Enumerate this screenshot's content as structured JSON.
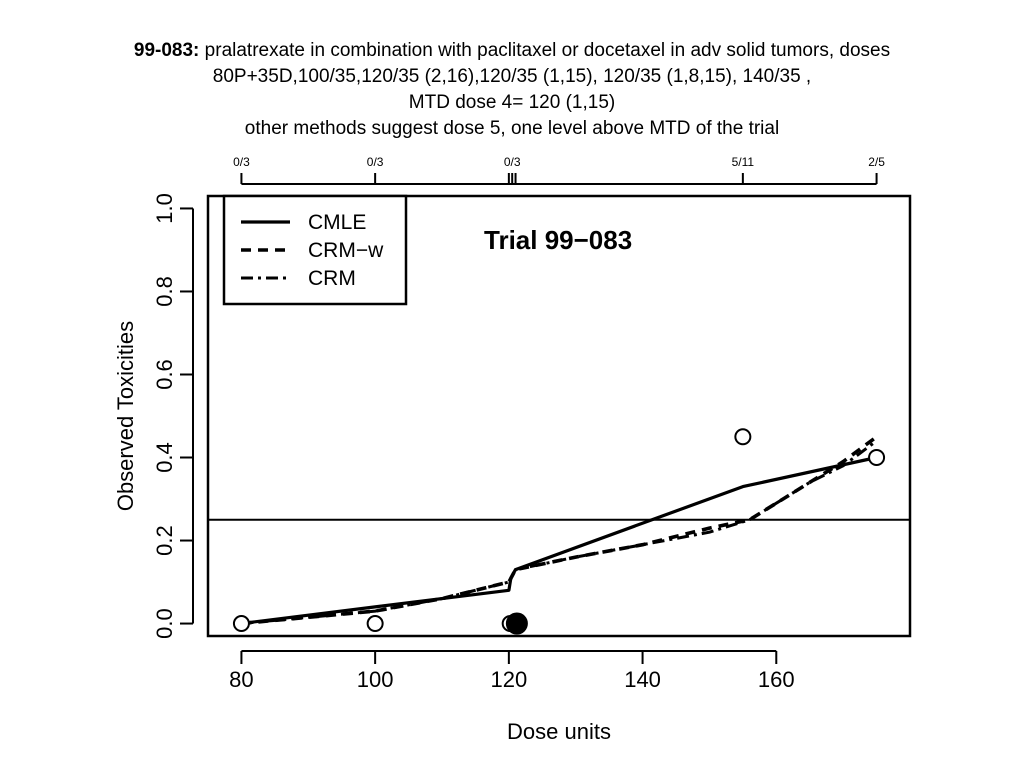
{
  "slide": {
    "title_bold": "99-083:",
    "title_rest": " pralatrexate in combination with paclitaxel or docetaxel in adv solid tumors, doses",
    "line2": "80P+35D,100/35,120/35 (2,16),120/35 (1,15), 120/35 (1,8,15), 140/35 ,",
    "line3": "MTD dose 4= 120 (1,15)",
    "line4": "other methods suggest dose 5, one level above MTD of the trial"
  },
  "chart_data": {
    "type": "line",
    "title": "Trial 99−083",
    "xlabel": "Dose units",
    "ylabel": "Observed Toxicities",
    "xlim": [
      75,
      180
    ],
    "ylim": [
      -0.03,
      1.03
    ],
    "xticks": [
      80,
      100,
      120,
      140,
      160
    ],
    "xtick_labels": [
      "80",
      "100",
      "120",
      "140",
      "160"
    ],
    "yticks": [
      0.0,
      0.2,
      0.4,
      0.6,
      0.8,
      1.0
    ],
    "ytick_labels": [
      "0.0",
      "0.2",
      "0.4",
      "0.6",
      "0.8",
      "1.0"
    ],
    "top_axis": {
      "ticks": [
        80,
        100,
        120,
        120.5,
        121,
        155,
        175
      ],
      "labels": [
        {
          "x": 80,
          "text": "0/3"
        },
        {
          "x": 100,
          "text": "0/3"
        },
        {
          "x": 120.5,
          "text": "0/3"
        },
        {
          "x": 155,
          "text": "5/11"
        },
        {
          "x": 175,
          "text": "2/5"
        }
      ]
    },
    "reference_line": {
      "y": 0.25
    },
    "legend": {
      "position": "top-left"
    },
    "series": [
      {
        "name": "CMLE",
        "dash": "solid",
        "x": [
          80,
          100,
          120,
          120.3,
          121,
          155,
          175
        ],
        "y": [
          0.0,
          0.04,
          0.08,
          0.11,
          0.13,
          0.33,
          0.4
        ]
      },
      {
        "name": "CRM−w",
        "dash": "dashed",
        "x": [
          80,
          100,
          110,
          120,
          121,
          130,
          140,
          150,
          156,
          160,
          165,
          170,
          175
        ],
        "y": [
          0.0,
          0.03,
          0.06,
          0.1,
          0.13,
          0.16,
          0.19,
          0.23,
          0.25,
          0.29,
          0.34,
          0.39,
          0.45
        ]
      },
      {
        "name": "CRM",
        "dash": "dashdot",
        "x": [
          80,
          100,
          110,
          120,
          121,
          130,
          140,
          150,
          156,
          160,
          165,
          170,
          175
        ],
        "y": [
          0.0,
          0.03,
          0.06,
          0.1,
          0.13,
          0.16,
          0.19,
          0.22,
          0.25,
          0.29,
          0.34,
          0.38,
          0.44
        ]
      }
    ],
    "observed_points": [
      {
        "x": 80,
        "y": 0.0,
        "filled": false
      },
      {
        "x": 100,
        "y": 0.0,
        "filled": false
      },
      {
        "x": 120.2,
        "y": 0.0,
        "filled": false
      },
      {
        "x": 121.2,
        "y": 0.0,
        "filled": true
      },
      {
        "x": 155,
        "y": 0.45,
        "filled": false
      },
      {
        "x": 175,
        "y": 0.4,
        "filled": false
      }
    ]
  }
}
